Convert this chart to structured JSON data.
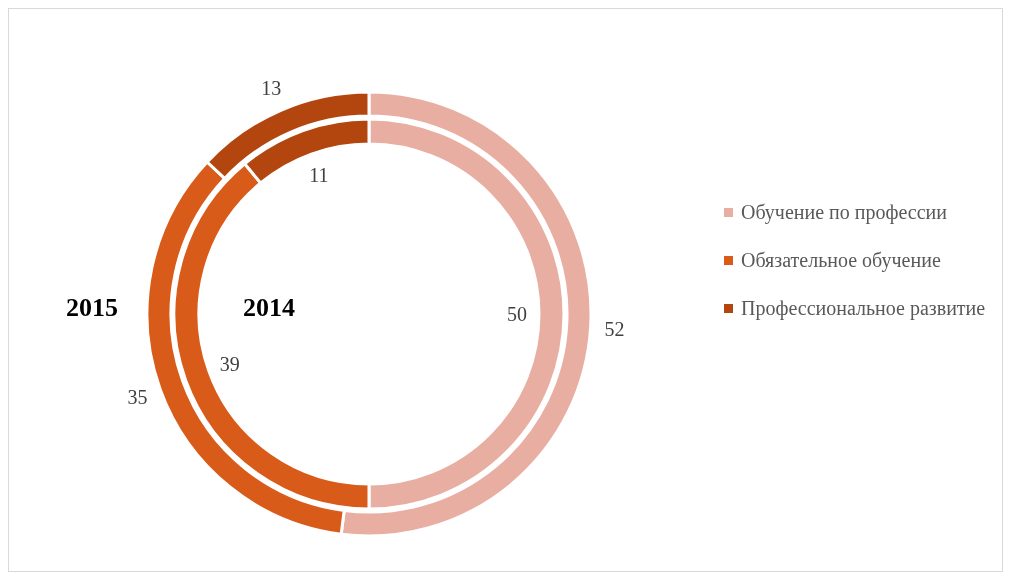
{
  "chart_data": {
    "type": "donut",
    "categories": [
      "Обучение по профессии",
      "Обязательное обучение",
      "Профессиональное развитие"
    ],
    "colors": [
      "#e8aea2",
      "#d95b1a",
      "#b3460f"
    ],
    "series": [
      {
        "name": "2014",
        "values": [
          50,
          39,
          11
        ]
      },
      {
        "name": "2015",
        "values": [
          52,
          35,
          13
        ]
      }
    ],
    "data_labels": true,
    "legend": "right"
  }
}
